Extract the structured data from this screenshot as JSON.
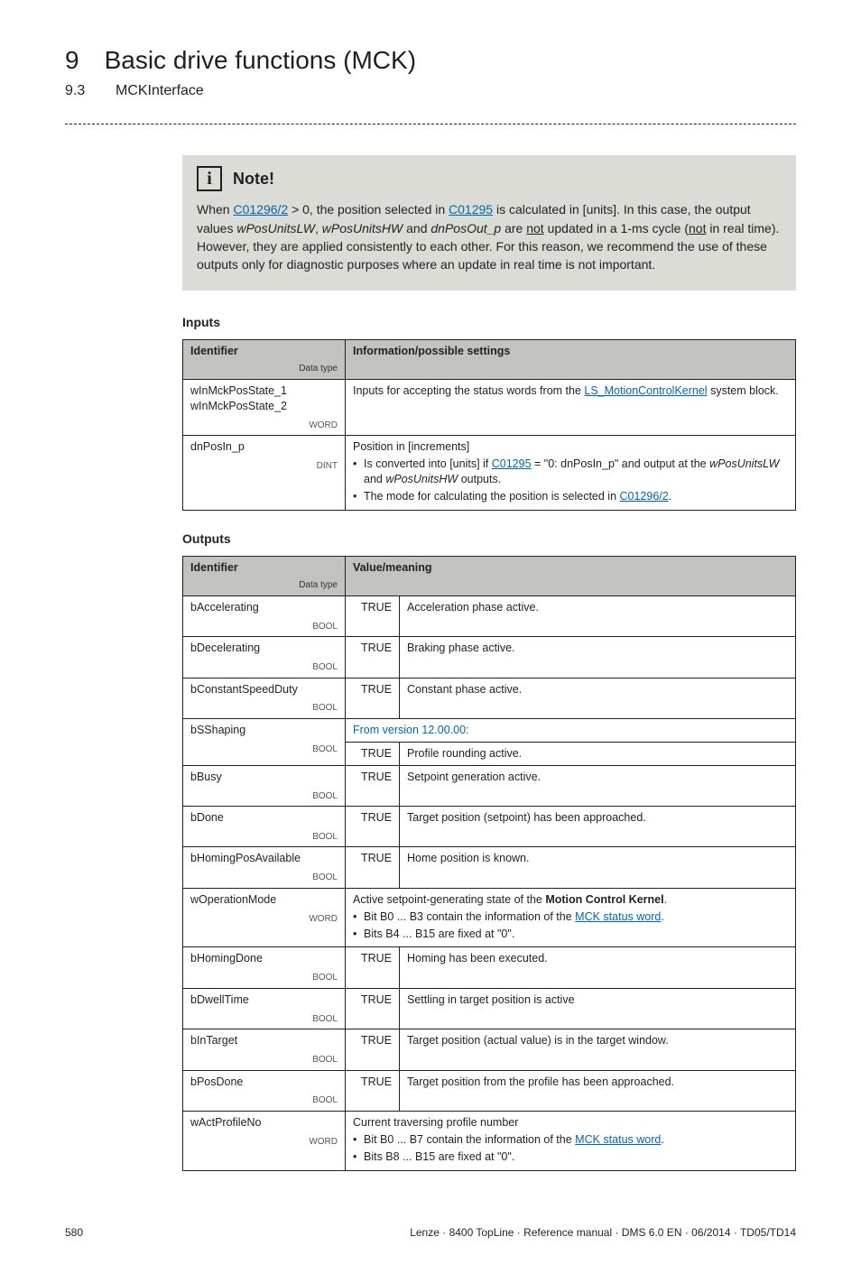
{
  "header": {
    "chapter_num": "9",
    "chapter_title": "Basic drive functions (MCK)",
    "section_num": "9.3",
    "section_title": "MCKInterface"
  },
  "note": {
    "label": "Note!",
    "body_pre": "When ",
    "link1": "C01296/2",
    "body_mid1": " > 0, the position selected in ",
    "link2": "C01295",
    "body_mid2": " is calculated in [units]. In this case, the output values ",
    "ital1": "wPosUnitsLW",
    "body_mid3": ", ",
    "ital2": "wPosUnitsHW",
    "body_mid4": " and ",
    "ital3": "dnPosOut_p",
    "body_mid5": " are ",
    "not1": "not",
    "body_mid6": " updated in a 1-ms cycle (",
    "not2": "not",
    "body_mid7": " in real time). However, they are applied consistently to each other. For this reason, we recommend the use of these outputs only for diagnostic purposes where an update in real time is not important."
  },
  "inputs": {
    "heading": "Inputs",
    "col_identifier": "Identifier",
    "col_info": "Information/possible settings",
    "dtype_label": "Data type",
    "rows": [
      {
        "id1": "wInMckPosState_1",
        "id2": "wInMckPosState_2",
        "dtype": "WORD",
        "info_pre": "Inputs for accepting the status words from the ",
        "info_link": "LS_MotionControlKernel",
        "info_post": " system block."
      },
      {
        "id1": "dnPosIn_p",
        "dtype": "DINT",
        "line1": "Position in [increments]",
        "b1_pre": "Is converted into [units] if ",
        "b1_link": "C01295",
        "b1_post": " = \"0: dnPosIn_p\" and output at the ",
        "b1_ital1": "wPosUnitsLW",
        "b1_mid": " and ",
        "b1_ital2": "wPosUnitsHW",
        "b1_end": " outputs.",
        "b2_pre": "The mode for calculating the position is selected in ",
        "b2_link": "C01296/2",
        "b2_post": "."
      }
    ]
  },
  "outputs": {
    "heading": "Outputs",
    "col_identifier": "Identifier",
    "col_value": "Value/meaning",
    "dtype_label": "Data type",
    "true_label": "TRUE",
    "rows": {
      "r1": {
        "id": "bAccelerating",
        "dtype": "BOOL",
        "val": "Acceleration phase active."
      },
      "r2": {
        "id": "bDecelerating",
        "dtype": "BOOL",
        "val": "Braking phase active."
      },
      "r3": {
        "id": "bConstantSpeedDuty",
        "dtype": "BOOL",
        "val": "Constant phase active."
      },
      "r4": {
        "id": "bSShaping",
        "dtype": "BOOL",
        "version": "From version 12.00.00:",
        "val": "Profile rounding active."
      },
      "r5": {
        "id": "bBusy",
        "dtype": "BOOL",
        "val": "Setpoint generation active."
      },
      "r6": {
        "id": "bDone",
        "dtype": "BOOL",
        "val": "Target position (setpoint) has been approached."
      },
      "r7": {
        "id": "bHomingPosAvailable",
        "dtype": "BOOL",
        "val": "Home position is known."
      },
      "r8": {
        "id": "wOperationMode",
        "dtype": "WORD",
        "line1_pre": "Active setpoint-generating state of the ",
        "line1_bold": "Motion Control Kernel",
        "line1_post": ".",
        "b1_pre": "Bit B0 ... B3 contain the information of the ",
        "b1_link": "MCK status word",
        "b1_post": ".",
        "b2": "Bits B4 ... B15 are fixed at \"0\"."
      },
      "r9": {
        "id": "bHomingDone",
        "dtype": "BOOL",
        "val": "Homing has been executed."
      },
      "r10": {
        "id": "bDwellTime",
        "dtype": "BOOL",
        "val": "Settling in target position is active"
      },
      "r11": {
        "id": "bInTarget",
        "dtype": "BOOL",
        "val": "Target position (actual value) is in the target window."
      },
      "r12": {
        "id": "bPosDone",
        "dtype": "BOOL",
        "val": "Target position from the profile has been approached."
      },
      "r13": {
        "id": "wActProfileNo",
        "dtype": "WORD",
        "line1": "Current traversing profile number",
        "b1_pre": "Bit B0 ... B7 contain the information of the ",
        "b1_link": "MCK status word",
        "b1_post": ".",
        "b2": "Bits B8 ... B15 are fixed at \"0\"."
      }
    }
  },
  "footer": {
    "page": "580",
    "doc": "Lenze · 8400 TopLine · Reference manual · DMS 6.0 EN · 06/2014 · TD05/TD14"
  }
}
